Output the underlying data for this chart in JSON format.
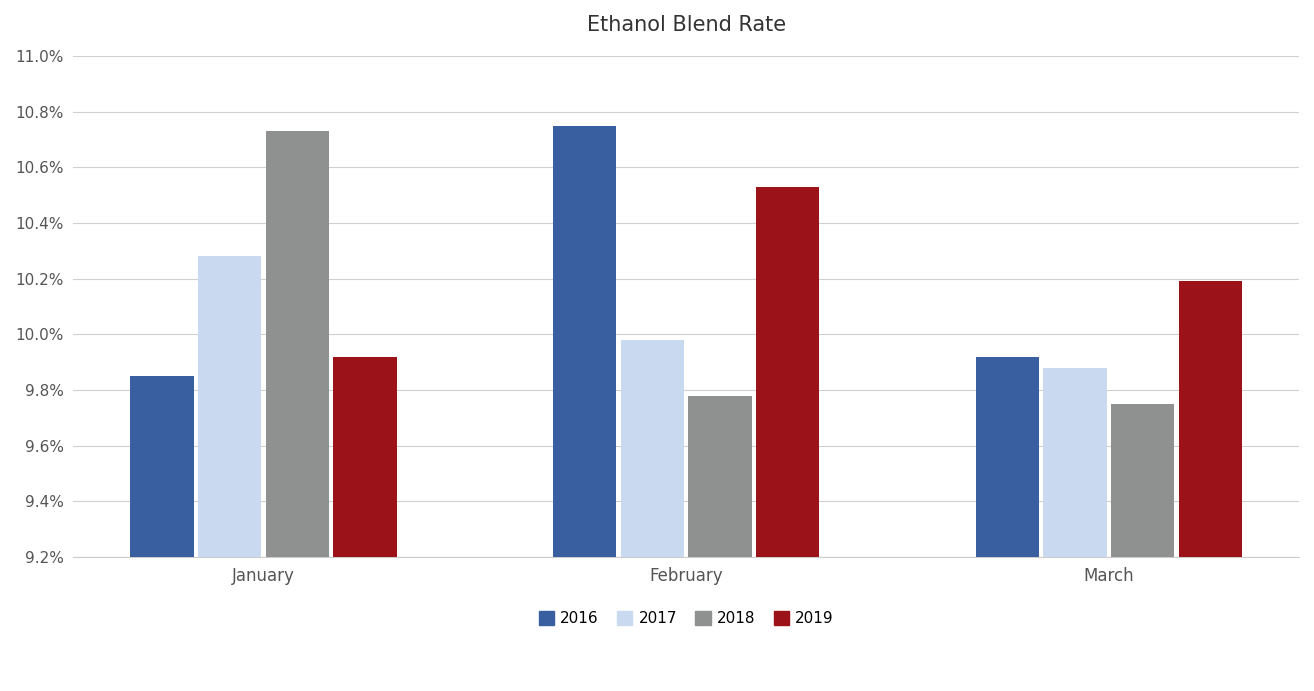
{
  "title": "Ethanol Blend Rate",
  "categories": [
    "January",
    "February",
    "March"
  ],
  "series": {
    "2016": [
      0.0985,
      0.1075,
      0.0992
    ],
    "2017": [
      0.1028,
      0.0998,
      0.0988
    ],
    "2018": [
      0.1073,
      0.0978,
      0.0975
    ],
    "2019": [
      0.0992,
      0.1053,
      0.1019
    ]
  },
  "colors": {
    "2016": "#3a5fa0",
    "2017": "#c9d9ef",
    "2018": "#8f9090",
    "2019": "#9b1318"
  },
  "ylim": [
    0.092,
    0.11
  ],
  "yticks": [
    0.092,
    0.094,
    0.096,
    0.098,
    0.1,
    0.102,
    0.104,
    0.106,
    0.108,
    0.11
  ],
  "legend_labels": [
    "2016",
    "2017",
    "2018",
    "2019"
  ],
  "title_fontsize": 15,
  "background_color": "#ffffff",
  "bar_width": 0.15,
  "x_positions": [
    0.0,
    1.0,
    2.0
  ],
  "xlim": [
    -0.45,
    2.45
  ]
}
